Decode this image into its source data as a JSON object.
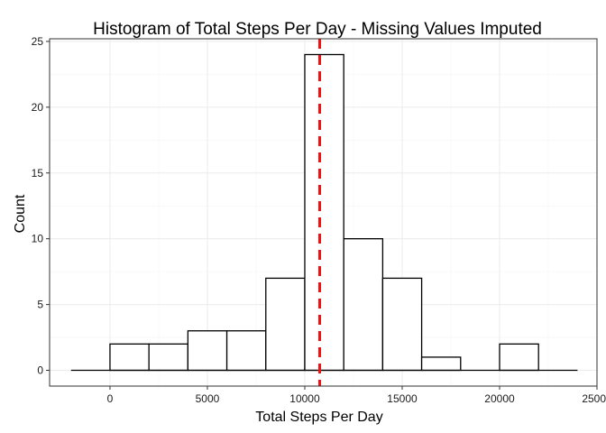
{
  "chart_data": {
    "type": "bar",
    "title": "Histogram of Total Steps Per Day - Missing Values Imputed",
    "xlabel": "Total Steps Per Day",
    "ylabel": "Count",
    "xlim": [
      -3100,
      25000
    ],
    "ylim": [
      -1.2,
      25.2
    ],
    "x_ticks": [
      0,
      5000,
      10000,
      15000,
      20000,
      25000
    ],
    "y_ticks": [
      0,
      5,
      10,
      15,
      20,
      25
    ],
    "bin_width": 2000,
    "bins": [
      {
        "start": -2000,
        "end": 0,
        "count": 0
      },
      {
        "start": 0,
        "end": 2000,
        "count": 2
      },
      {
        "start": 2000,
        "end": 4000,
        "count": 2
      },
      {
        "start": 4000,
        "end": 6000,
        "count": 3
      },
      {
        "start": 6000,
        "end": 8000,
        "count": 3
      },
      {
        "start": 8000,
        "end": 10000,
        "count": 7
      },
      {
        "start": 10000,
        "end": 12000,
        "count": 24
      },
      {
        "start": 12000,
        "end": 14000,
        "count": 10
      },
      {
        "start": 14000,
        "end": 16000,
        "count": 7
      },
      {
        "start": 16000,
        "end": 18000,
        "count": 1
      },
      {
        "start": 18000,
        "end": 20000,
        "count": 0
      },
      {
        "start": 20000,
        "end": 22000,
        "count": 2
      },
      {
        "start": 22000,
        "end": 24000,
        "count": 0
      }
    ],
    "mean_line": {
      "x": 10766,
      "color": "#ee1111",
      "style": "dashed"
    },
    "bar_fill": "#ffffff",
    "bar_outline": "#000000",
    "grid": true,
    "legend": "none"
  }
}
